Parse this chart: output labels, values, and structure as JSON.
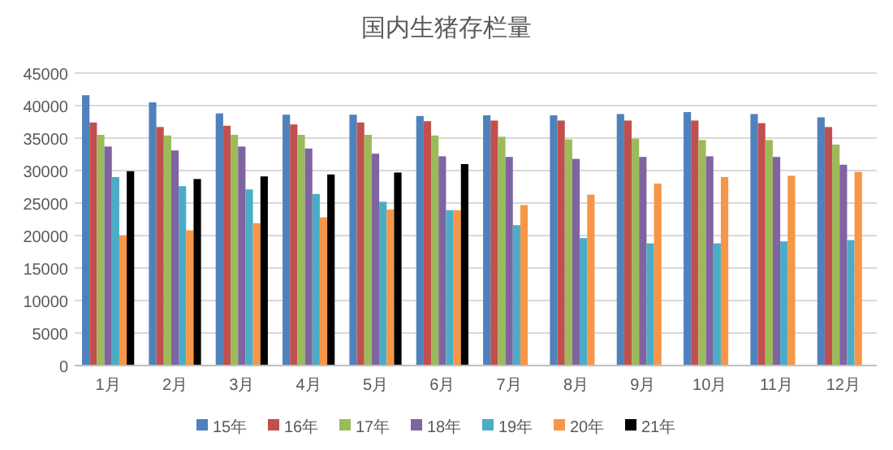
{
  "chart_data": {
    "type": "bar",
    "title": "国内生猪存栏量",
    "categories": [
      "1月",
      "2月",
      "3月",
      "4月",
      "5月",
      "6月",
      "7月",
      "8月",
      "9月",
      "10月",
      "11月",
      "12月"
    ],
    "series": [
      {
        "name": "15年",
        "color": "#4f81bd",
        "values": [
          41600,
          40500,
          38800,
          38600,
          38600,
          38400,
          38500,
          38500,
          38700,
          39000,
          38700,
          38200
        ]
      },
      {
        "name": "16年",
        "color": "#c0504d",
        "values": [
          37400,
          36700,
          36900,
          37100,
          37400,
          37600,
          37700,
          37700,
          37700,
          37700,
          37300,
          36700
        ]
      },
      {
        "name": "17年",
        "color": "#9bbb59",
        "values": [
          35500,
          35400,
          35500,
          35500,
          35500,
          35400,
          35200,
          34800,
          34900,
          34700,
          34700,
          34000
        ]
      },
      {
        "name": "18年",
        "color": "#8064a2",
        "values": [
          33700,
          33100,
          33700,
          33400,
          32600,
          32200,
          32100,
          31800,
          32100,
          32200,
          32100,
          30900
        ]
      },
      {
        "name": "19年",
        "color": "#4bacc6",
        "values": [
          29000,
          27600,
          27100,
          26400,
          25200,
          23900,
          21600,
          19600,
          18800,
          18800,
          19100,
          19300
        ]
      },
      {
        "name": "20年",
        "color": "#f79646",
        "values": [
          20000,
          20800,
          21900,
          22800,
          24000,
          23900,
          24700,
          26300,
          28000,
          29000,
          29200,
          29800
        ]
      },
      {
        "name": "21年",
        "color": "#000000",
        "values": [
          29900,
          28700,
          29100,
          29400,
          29700,
          31000,
          null,
          null,
          null,
          null,
          null,
          null
        ]
      }
    ],
    "ylim": [
      0,
      45000
    ],
    "yticks": [
      0,
      5000,
      10000,
      15000,
      20000,
      25000,
      30000,
      35000,
      40000,
      45000
    ],
    "grid": "y",
    "legend": "bottom"
  }
}
